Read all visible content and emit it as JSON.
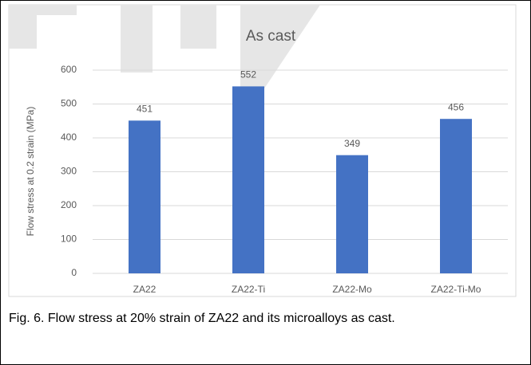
{
  "chart_data": {
    "type": "bar",
    "title": "As cast",
    "y_label": "Flow stress at 0.2 strain (MPa)",
    "categories": [
      "ZA22",
      "ZA22-Ti",
      "ZA22-Mo",
      "ZA22-Ti-Mo"
    ],
    "values": [
      451,
      552,
      349,
      456
    ],
    "color": "#4472c4",
    "ylim": [
      0,
      600
    ],
    "yticks": [
      0,
      100,
      200,
      300,
      400,
      500,
      600
    ],
    "grid": true,
    "data_labels": true
  },
  "caption": "Fig. 6. Flow stress at 20% strain of ZA22 and its microalloys as cast."
}
